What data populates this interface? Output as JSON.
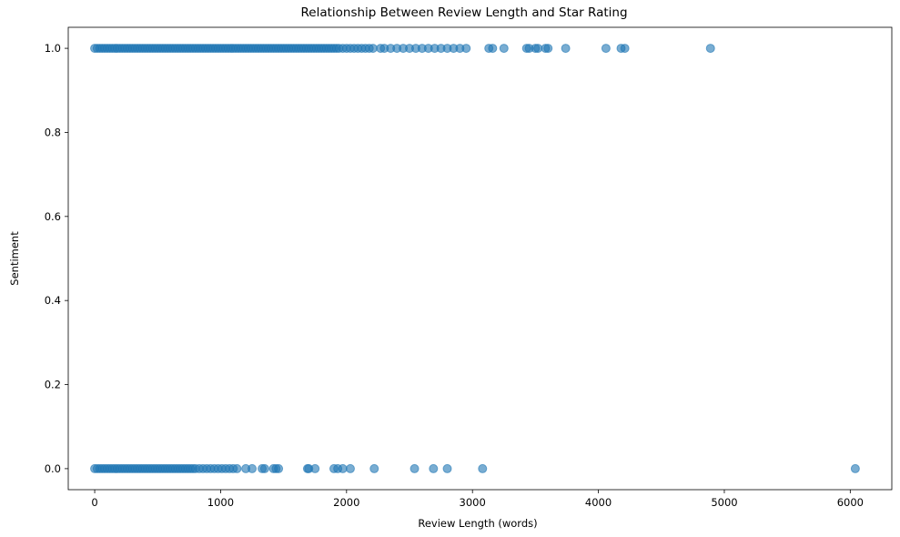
{
  "chart_data": {
    "type": "scatter",
    "title": "Relationship Between Review Length and Star Rating",
    "xlabel": "Review Length (words)",
    "ylabel": "Sentiment",
    "xlim": [
      -210,
      6330
    ],
    "ylim": [
      -0.05,
      1.05
    ],
    "xticks": [
      0,
      1000,
      2000,
      3000,
      4000,
      5000,
      6000
    ],
    "xtick_labels": [
      "0",
      "1000",
      "2000",
      "3000",
      "4000",
      "5000",
      "6000"
    ],
    "yticks": [
      0.0,
      0.2,
      0.4,
      0.6,
      0.8,
      1.0
    ],
    "ytick_labels": [
      "0.0",
      "0.2",
      "0.4",
      "0.6",
      "0.8",
      "1.0"
    ],
    "grid": false,
    "marker_color": "#1f77b4",
    "marker_alpha": 0.6,
    "series": [
      {
        "points": [
          [
            0,
            1
          ],
          [
            20,
            1
          ],
          [
            40,
            1
          ],
          [
            60,
            1
          ],
          [
            80,
            1
          ],
          [
            100,
            1
          ],
          [
            120,
            1
          ],
          [
            140,
            1
          ],
          [
            160,
            1
          ],
          [
            180,
            1
          ],
          [
            200,
            1
          ],
          [
            220,
            1
          ],
          [
            240,
            1
          ],
          [
            260,
            1
          ],
          [
            280,
            1
          ],
          [
            300,
            1
          ],
          [
            320,
            1
          ],
          [
            340,
            1
          ],
          [
            360,
            1
          ],
          [
            380,
            1
          ],
          [
            400,
            1
          ],
          [
            420,
            1
          ],
          [
            440,
            1
          ],
          [
            460,
            1
          ],
          [
            480,
            1
          ],
          [
            500,
            1
          ],
          [
            520,
            1
          ],
          [
            540,
            1
          ],
          [
            560,
            1
          ],
          [
            580,
            1
          ],
          [
            600,
            1
          ],
          [
            620,
            1
          ],
          [
            640,
            1
          ],
          [
            660,
            1
          ],
          [
            680,
            1
          ],
          [
            700,
            1
          ],
          [
            720,
            1
          ],
          [
            740,
            1
          ],
          [
            760,
            1
          ],
          [
            780,
            1
          ],
          [
            800,
            1
          ],
          [
            820,
            1
          ],
          [
            840,
            1
          ],
          [
            860,
            1
          ],
          [
            880,
            1
          ],
          [
            900,
            1
          ],
          [
            920,
            1
          ],
          [
            940,
            1
          ],
          [
            960,
            1
          ],
          [
            980,
            1
          ],
          [
            1000,
            1
          ],
          [
            1020,
            1
          ],
          [
            1040,
            1
          ],
          [
            1060,
            1
          ],
          [
            1080,
            1
          ],
          [
            1100,
            1
          ],
          [
            1120,
            1
          ],
          [
            1140,
            1
          ],
          [
            1160,
            1
          ],
          [
            1180,
            1
          ],
          [
            1200,
            1
          ],
          [
            1220,
            1
          ],
          [
            1240,
            1
          ],
          [
            1260,
            1
          ],
          [
            1280,
            1
          ],
          [
            1300,
            1
          ],
          [
            1320,
            1
          ],
          [
            1340,
            1
          ],
          [
            1360,
            1
          ],
          [
            1380,
            1
          ],
          [
            1400,
            1
          ],
          [
            1420,
            1
          ],
          [
            1440,
            1
          ],
          [
            1460,
            1
          ],
          [
            1480,
            1
          ],
          [
            1500,
            1
          ],
          [
            1520,
            1
          ],
          [
            1540,
            1
          ],
          [
            1560,
            1
          ],
          [
            1580,
            1
          ],
          [
            1600,
            1
          ],
          [
            1620,
            1
          ],
          [
            1640,
            1
          ],
          [
            1660,
            1
          ],
          [
            1680,
            1
          ],
          [
            1700,
            1
          ],
          [
            1720,
            1
          ],
          [
            1740,
            1
          ],
          [
            1760,
            1
          ],
          [
            1780,
            1
          ],
          [
            1800,
            1
          ],
          [
            1820,
            1
          ],
          [
            1840,
            1
          ],
          [
            1860,
            1
          ],
          [
            1880,
            1
          ],
          [
            1900,
            1
          ],
          [
            1920,
            1
          ],
          [
            1940,
            1
          ],
          [
            1970,
            1
          ],
          [
            2000,
            1
          ],
          [
            2030,
            1
          ],
          [
            2060,
            1
          ],
          [
            2090,
            1
          ],
          [
            2120,
            1
          ],
          [
            2150,
            1
          ],
          [
            2180,
            1
          ],
          [
            2210,
            1
          ],
          [
            2270,
            1
          ],
          [
            2300,
            1
          ],
          [
            2350,
            1
          ],
          [
            2400,
            1
          ],
          [
            2450,
            1
          ],
          [
            2500,
            1
          ],
          [
            2550,
            1
          ],
          [
            2600,
            1
          ],
          [
            2650,
            1
          ],
          [
            2700,
            1
          ],
          [
            2750,
            1
          ],
          [
            2800,
            1
          ],
          [
            2850,
            1
          ],
          [
            2900,
            1
          ],
          [
            2950,
            1
          ],
          [
            3130,
            1
          ],
          [
            3160,
            1
          ],
          [
            3250,
            1
          ],
          [
            3430,
            1
          ],
          [
            3450,
            1
          ],
          [
            3500,
            1
          ],
          [
            3520,
            1
          ],
          [
            3580,
            1
          ],
          [
            3600,
            1
          ],
          [
            3740,
            1
          ],
          [
            4060,
            1
          ],
          [
            4180,
            1
          ],
          [
            4210,
            1
          ],
          [
            4890,
            1
          ],
          [
            0,
            0
          ],
          [
            20,
            0
          ],
          [
            40,
            0
          ],
          [
            60,
            0
          ],
          [
            80,
            0
          ],
          [
            100,
            0
          ],
          [
            120,
            0
          ],
          [
            140,
            0
          ],
          [
            160,
            0
          ],
          [
            180,
            0
          ],
          [
            200,
            0
          ],
          [
            220,
            0
          ],
          [
            240,
            0
          ],
          [
            260,
            0
          ],
          [
            280,
            0
          ],
          [
            300,
            0
          ],
          [
            320,
            0
          ],
          [
            340,
            0
          ],
          [
            360,
            0
          ],
          [
            380,
            0
          ],
          [
            400,
            0
          ],
          [
            420,
            0
          ],
          [
            440,
            0
          ],
          [
            460,
            0
          ],
          [
            480,
            0
          ],
          [
            500,
            0
          ],
          [
            520,
            0
          ],
          [
            540,
            0
          ],
          [
            560,
            0
          ],
          [
            580,
            0
          ],
          [
            600,
            0
          ],
          [
            620,
            0
          ],
          [
            640,
            0
          ],
          [
            660,
            0
          ],
          [
            680,
            0
          ],
          [
            700,
            0
          ],
          [
            720,
            0
          ],
          [
            740,
            0
          ],
          [
            760,
            0
          ],
          [
            780,
            0
          ],
          [
            800,
            0
          ],
          [
            830,
            0
          ],
          [
            860,
            0
          ],
          [
            890,
            0
          ],
          [
            920,
            0
          ],
          [
            950,
            0
          ],
          [
            980,
            0
          ],
          [
            1010,
            0
          ],
          [
            1040,
            0
          ],
          [
            1070,
            0
          ],
          [
            1100,
            0
          ],
          [
            1130,
            0
          ],
          [
            1200,
            0
          ],
          [
            1250,
            0
          ],
          [
            1330,
            0
          ],
          [
            1350,
            0
          ],
          [
            1420,
            0
          ],
          [
            1440,
            0
          ],
          [
            1460,
            0
          ],
          [
            1690,
            0
          ],
          [
            1700,
            0
          ],
          [
            1750,
            0
          ],
          [
            1900,
            0
          ],
          [
            1930,
            0
          ],
          [
            1970,
            0
          ],
          [
            2030,
            0
          ],
          [
            2220,
            0
          ],
          [
            2540,
            0
          ],
          [
            2690,
            0
          ],
          [
            2800,
            0
          ],
          [
            3080,
            0
          ],
          [
            6040,
            0
          ]
        ]
      }
    ]
  }
}
